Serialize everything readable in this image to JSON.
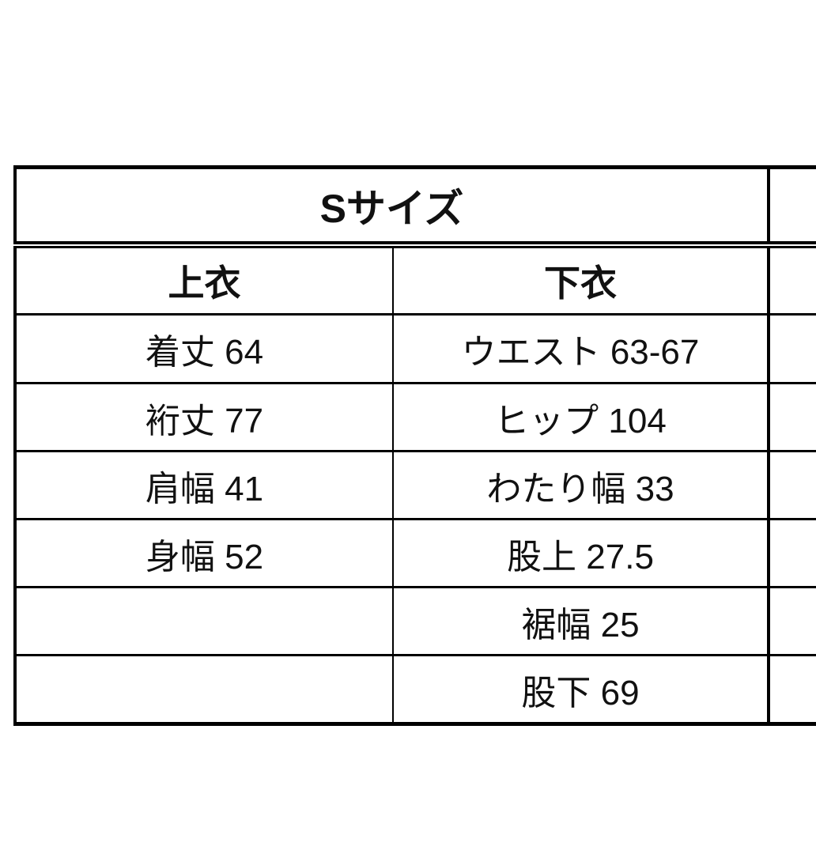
{
  "title": "Sサイズ",
  "headers": {
    "tops": "上衣",
    "bottoms": "下衣"
  },
  "rows": [
    {
      "tops": "着丈 64",
      "bottoms": "ウエスト 63-67"
    },
    {
      "tops": "裄丈 77",
      "bottoms": "ヒップ 104"
    },
    {
      "tops": "肩幅 41",
      "bottoms": "わたり幅 33"
    },
    {
      "tops": "身幅 52",
      "bottoms": "股上 27.5"
    },
    {
      "tops": "",
      "bottoms": "裾幅 25"
    },
    {
      "tops": "",
      "bottoms": "股下 69"
    }
  ]
}
